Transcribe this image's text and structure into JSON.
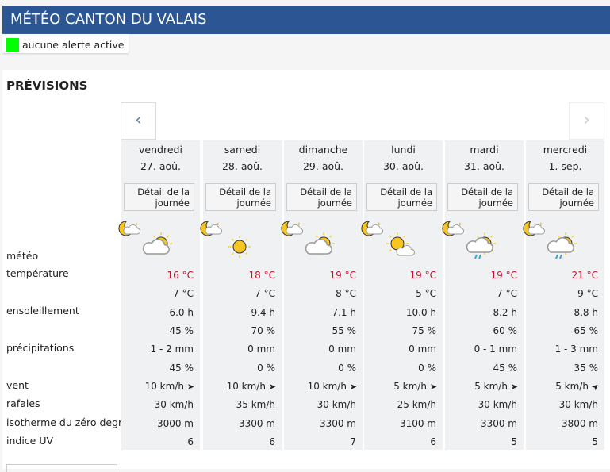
{
  "header": {
    "title": "MÉTÉO CANTON DU VALAIS"
  },
  "alert": {
    "label": "aucune alerte active",
    "color": "#00ff00"
  },
  "forecast": {
    "title": "PRÉVISIONS",
    "prev_icon": "chevron-left-icon",
    "next_icon": "chevron-right-icon",
    "row_labels": {
      "meteo": "météo",
      "temperature": "température",
      "sun": "ensoleillement",
      "precip": "précipitations",
      "wind": "vent",
      "gusts": "rafales",
      "zero": "isotherme du zéro degré",
      "uv": "indice UV"
    },
    "days": [
      {
        "day": "vendredi",
        "date": "27. aoû.",
        "detail": "Détail de la journée",
        "night_icon": "moon-cloud-icon",
        "day_icon": "cloud-sun-icon",
        "tmax": "16 °C",
        "tmin": "7 °C",
        "sun": "6.0 h",
        "sun_pct": "45 %",
        "precip": "1 - 2 mm",
        "precip_pct": "45 %",
        "wind": "10 km/h",
        "wind_dir": "east",
        "gusts": "30 km/h",
        "zero": "3000 m",
        "uv": "6"
      },
      {
        "day": "samedi",
        "date": "28. aoû.",
        "detail": "Détail de la journée",
        "night_icon": "moon-cloud-icon",
        "day_icon": "sun-icon",
        "tmax": "18 °C",
        "tmin": "7 °C",
        "sun": "9.4 h",
        "sun_pct": "70 %",
        "precip": "0 mm",
        "precip_pct": "0 %",
        "wind": "10 km/h",
        "wind_dir": "east",
        "gusts": "35 km/h",
        "zero": "3300 m",
        "uv": "6"
      },
      {
        "day": "dimanche",
        "date": "29. aoû.",
        "detail": "Détail de la journée",
        "night_icon": "moon-cloud-icon",
        "day_icon": "cloud-sun-icon",
        "tmax": "19 °C",
        "tmin": "8 °C",
        "sun": "7.1 h",
        "sun_pct": "55 %",
        "precip": "0 mm",
        "precip_pct": "0 %",
        "wind": "10 km/h",
        "wind_dir": "east",
        "gusts": "30 km/h",
        "zero": "3300 m",
        "uv": "7"
      },
      {
        "day": "lundi",
        "date": "30. aoû.",
        "detail": "Détail de la journée",
        "night_icon": "moon-cloud-icon",
        "day_icon": "sun-cloud-icon",
        "tmax": "19 °C",
        "tmin": "5 °C",
        "sun": "10.0 h",
        "sun_pct": "75 %",
        "precip": "0 mm",
        "precip_pct": "0 %",
        "wind": "5 km/h",
        "wind_dir": "east",
        "gusts": "25 km/h",
        "zero": "3100 m",
        "uv": "6"
      },
      {
        "day": "mardi",
        "date": "31. aoû.",
        "detail": "Détail de la journée",
        "night_icon": "moon-cloud-icon",
        "day_icon": "rain-sun-icon",
        "tmax": "19 °C",
        "tmin": "7 °C",
        "sun": "8.2 h",
        "sun_pct": "60 %",
        "precip": "0 - 1 mm",
        "precip_pct": "45 %",
        "wind": "5 km/h",
        "wind_dir": "east",
        "gusts": "30 km/h",
        "zero": "3300 m",
        "uv": "5"
      },
      {
        "day": "mercredi",
        "date": "1. sep.",
        "detail": "Détail de la journée",
        "night_icon": "moon-cloud-icon",
        "day_icon": "rain-sun-icon",
        "tmax": "21 °C",
        "tmin": "9 °C",
        "sun": "8.8 h",
        "sun_pct": "65 %",
        "precip": "1 - 3 mm",
        "precip_pct": "35 %",
        "wind": "5 km/h",
        "wind_dir": "north-east",
        "gusts": "30 km/h",
        "zero": "3800 m",
        "uv": "5"
      }
    ]
  }
}
